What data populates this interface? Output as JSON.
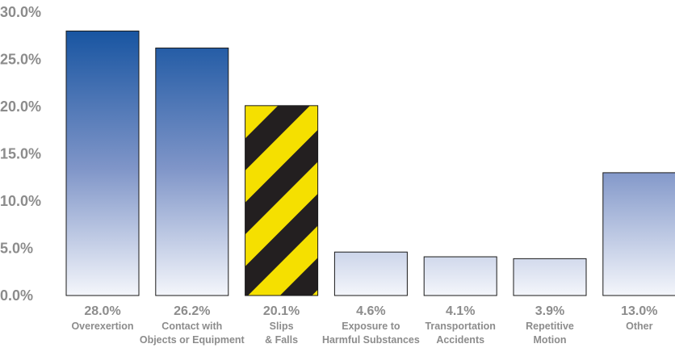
{
  "chart_data": {
    "type": "bar",
    "title": "",
    "xlabel": "",
    "ylabel": "",
    "ylim": [
      0,
      30
    ],
    "y_ticks": [
      "0.0%",
      "5.0%",
      "10.0%",
      "15.0%",
      "20.0%",
      "25.0%",
      "30.0%"
    ],
    "grid": false,
    "legend": "none",
    "categories": [
      [
        "Overexertion"
      ],
      [
        "Contact with",
        "Objects or Equipment"
      ],
      [
        "Slips",
        "& Falls"
      ],
      [
        "Exposure to",
        "Harmful Substances"
      ],
      [
        "Transportation",
        "Accidents"
      ],
      [
        "Repetitive",
        "Motion"
      ],
      [
        "Other"
      ]
    ],
    "values": [
      28.0,
      26.2,
      20.1,
      4.6,
      4.1,
      3.9,
      13.0
    ],
    "value_labels": [
      "28.0%",
      "26.2%",
      "20.1%",
      "4.6%",
      "4.1%",
      "3.9%",
      "13.0%"
    ],
    "highlight_index": 2,
    "colors": {
      "bar_top": "#0a4c9c",
      "bar_bottom": "#f4f6fb",
      "bar_border": "#1a1a1a",
      "stripe_yellow": "#f5e000",
      "stripe_black": "#231f20",
      "text": "#8c8c8c"
    }
  }
}
